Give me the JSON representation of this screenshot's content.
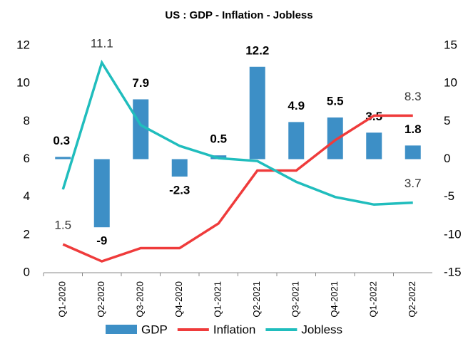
{
  "chart_data": {
    "type": "bar-line",
    "title": "US : GDP - Inflation  - Jobless",
    "categories": [
      "Q1-2020",
      "Q2-2020",
      "Q3-2020",
      "Q4-2020",
      "Q1-2021",
      "Q2-2021",
      "Q3-2021",
      "Q4-2021",
      "Q1-2022",
      "Q2-2022"
    ],
    "ylim": [
      0,
      12
    ],
    "yticks": [
      0,
      2,
      4,
      6,
      8,
      10,
      12
    ],
    "y2lim": [
      -15,
      15
    ],
    "y2ticks": [
      -15,
      -10,
      -5,
      0,
      5,
      10,
      15
    ],
    "legend": "bottom",
    "series": [
      {
        "name": "GDP",
        "type": "bar",
        "axis": "y2",
        "color": "#3d8fc6",
        "values": [
          0.3,
          -9,
          7.9,
          -2.3,
          0.5,
          12.2,
          4.9,
          5.5,
          3.5,
          1.8
        ]
      },
      {
        "name": "Inflation",
        "type": "line",
        "color": "#ef3b3b",
        "values": [
          1.5,
          0.6,
          1.3,
          1.3,
          2.6,
          5.4,
          5.4,
          7.0,
          8.3,
          8.3
        ],
        "value_labels": [
          "1.5",
          null,
          null,
          null,
          null,
          null,
          null,
          null,
          null,
          "8.3"
        ]
      },
      {
        "name": "Jobless",
        "type": "line",
        "color": "#20bdbd",
        "values": [
          4.4,
          11.1,
          7.8,
          6.7,
          6.05,
          5.9,
          4.8,
          4.0,
          3.6,
          3.7
        ],
        "value_labels": [
          null,
          "11.1",
          null,
          null,
          null,
          null,
          null,
          null,
          null,
          "3.7"
        ]
      }
    ]
  }
}
